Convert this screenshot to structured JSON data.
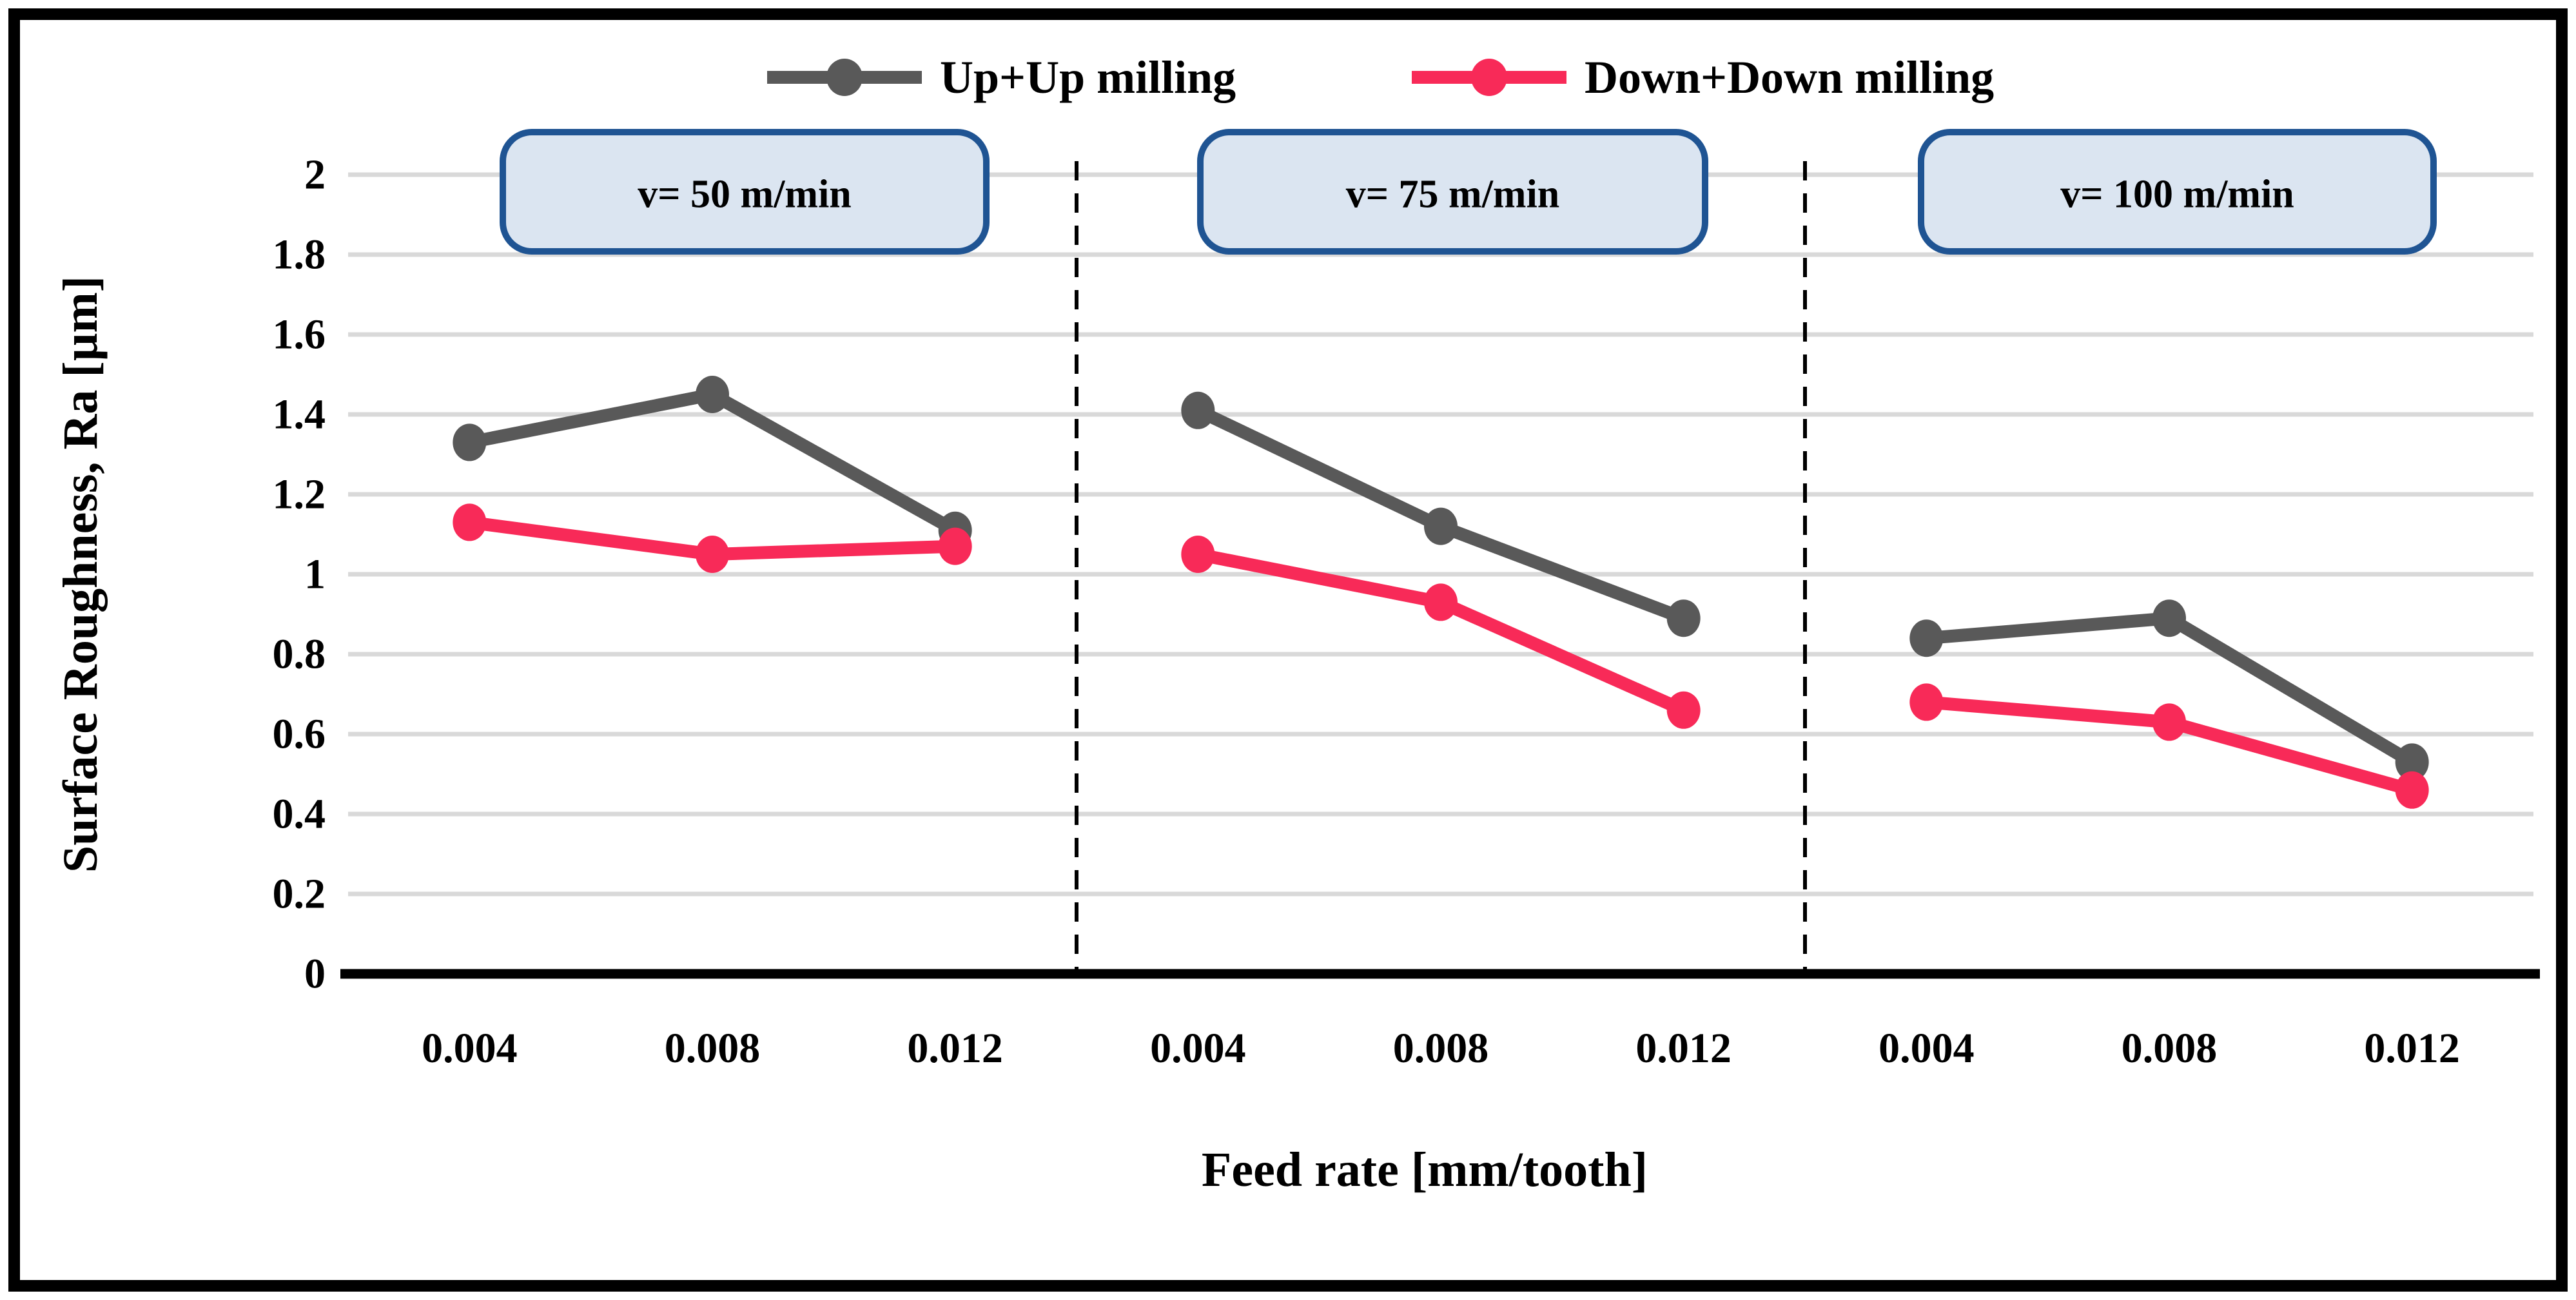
{
  "chart_data": {
    "type": "line",
    "title": "",
    "xlabel": "Feed rate [mm/tooth]",
    "ylabel": "Surface Roughness, Ra [µm]",
    "ylim": [
      0,
      2
    ],
    "ytick_step": 0.2,
    "yticks": [
      {
        "label": "2",
        "value": 2.0
      },
      {
        "label": "1.8",
        "value": 1.8
      },
      {
        "label": "1.6",
        "value": 1.6
      },
      {
        "label": "1.4",
        "value": 1.4
      },
      {
        "label": "1.2",
        "value": 1.2
      },
      {
        "label": "1",
        "value": 1.0
      },
      {
        "label": "0.8",
        "value": 0.8
      },
      {
        "label": "0.6",
        "value": 0.6
      },
      {
        "label": "0.4",
        "value": 0.4
      },
      {
        "label": "0.2",
        "value": 0.2
      },
      {
        "label": "0",
        "value": 0.0
      }
    ],
    "grid": true,
    "legend_position": "top",
    "legend": [
      {
        "label": "Up+Up milling",
        "color": "#595959"
      },
      {
        "label": "Down+Down milling",
        "color": "#F82A58"
      }
    ],
    "panels": [
      {
        "label": "v= 50 m/min",
        "categories": [
          "0.004",
          "0.008",
          "0.012"
        ],
        "series": [
          {
            "name": "Up+Up milling",
            "color": "#595959",
            "values": [
              1.33,
              1.45,
              1.11
            ]
          },
          {
            "name": "Down+Down milling",
            "color": "#F82A58",
            "values": [
              1.13,
              1.05,
              1.07
            ]
          }
        ]
      },
      {
        "label": "v= 75 m/min",
        "categories": [
          "0.004",
          "0.008",
          "0.012"
        ],
        "series": [
          {
            "name": "Up+Up milling",
            "color": "#595959",
            "values": [
              1.41,
              1.12,
              0.89
            ]
          },
          {
            "name": "Down+Down milling",
            "color": "#F82A58",
            "values": [
              1.05,
              0.93,
              0.66
            ]
          }
        ]
      },
      {
        "label": "v= 100 m/min",
        "categories": [
          "0.004",
          "0.008",
          "0.012"
        ],
        "series": [
          {
            "name": "Up+Up milling",
            "color": "#595959",
            "values": [
              0.84,
              0.89,
              0.53
            ]
          },
          {
            "name": "Down+Down milling",
            "color": "#F82A58",
            "values": [
              0.68,
              0.63,
              0.46
            ]
          }
        ]
      }
    ],
    "colors": {
      "gridline": "#D9D9D9",
      "axis_line": "#000000",
      "separator": "#000000",
      "speed_box_fill": "#DBE5F1",
      "speed_box_border": "#1F5493",
      "outer_border": "#000000"
    }
  }
}
